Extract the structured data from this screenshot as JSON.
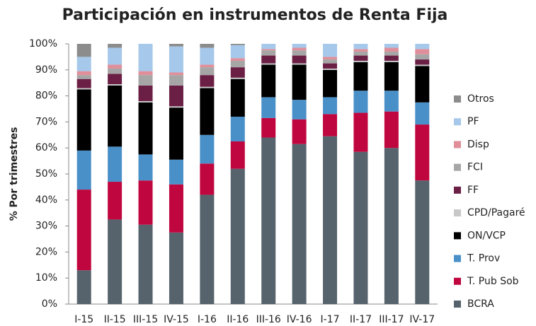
{
  "chart_data": {
    "type": "stacked_bar",
    "title": "Participación en instrumentos de Renta Fija",
    "y_label": "% Por trimestres",
    "categories": [
      "I-15",
      "II-15",
      "III-15",
      "IV-15",
      "I-16",
      "II-16",
      "III-16",
      "IV-16",
      "I-17",
      "II-17",
      "III-17",
      "IV-17"
    ],
    "series": [
      {
        "name": "BCRA",
        "color": "#56636c",
        "values": [
          13,
          32.5,
          30.5,
          27.5,
          42,
          52,
          64,
          61.5,
          64.5,
          58.5,
          60,
          47.5
        ]
      },
      {
        "name": "T. Pub Sob",
        "color": "#c0063f",
        "values": [
          31,
          14.5,
          17,
          18.5,
          12,
          10.5,
          7.5,
          9.5,
          8.5,
          15,
          14,
          21.5
        ]
      },
      {
        "name": "T. Prov",
        "color": "#4a90c8",
        "values": [
          15,
          13.5,
          10,
          9.5,
          11,
          9.5,
          8,
          7.5,
          6.5,
          8.5,
          8,
          8.5
        ]
      },
      {
        "name": "ON/VCP",
        "color": "#000000",
        "values": [
          23.5,
          23.5,
          20,
          20,
          18,
          14.5,
          12.5,
          13.5,
          10.5,
          11,
          11,
          14
        ]
      },
      {
        "name": "CPD/Pagaré",
        "color": "#c8c8c8",
        "values": [
          0.5,
          0.5,
          0.5,
          0.5,
          0.5,
          0.5,
          0.5,
          0.5,
          0.5,
          0.5,
          0.5,
          0.5
        ]
      },
      {
        "name": "FF",
        "color": "#6b1f45",
        "values": [
          3.5,
          4,
          6,
          8,
          4.5,
          4,
          3,
          3,
          2,
          2,
          2,
          2
        ]
      },
      {
        "name": "FCI",
        "color": "#a6a6a6",
        "values": [
          1.5,
          2,
          4,
          4,
          3,
          2.5,
          2,
          2,
          1.5,
          1.5,
          1.5,
          2
        ]
      },
      {
        "name": "Disp",
        "color": "#e08f9a",
        "values": [
          1.5,
          1.5,
          1.5,
          1,
          1,
          1,
          0.5,
          1,
          1,
          1,
          1.5,
          2
        ]
      },
      {
        "name": "PF",
        "color": "#a6c8ea",
        "values": [
          5.5,
          6.5,
          10.5,
          10,
          6.5,
          5,
          2,
          1.5,
          5,
          2,
          1.5,
          2
        ]
      },
      {
        "name": "Otros",
        "color": "#8c8c8c",
        "values": [
          5,
          1.5,
          0,
          1,
          1.5,
          0.5,
          0,
          0,
          0,
          0,
          0,
          0
        ]
      }
    ],
    "ylim": [
      0,
      100
    ],
    "yticks": [
      {
        "value": 0,
        "label": "0%"
      },
      {
        "value": 10,
        "label": "10%"
      },
      {
        "value": 20,
        "label": "20%"
      },
      {
        "value": 30,
        "label": "30%"
      },
      {
        "value": 40,
        "label": "40%"
      },
      {
        "value": 50,
        "label": "50%"
      },
      {
        "value": 60,
        "label": "60%"
      },
      {
        "value": 70,
        "label": "70%"
      },
      {
        "value": 80,
        "label": "80%"
      },
      {
        "value": 90,
        "label": "90%"
      },
      {
        "value": 100,
        "label": "100%"
      }
    ],
    "legend": "right"
  }
}
